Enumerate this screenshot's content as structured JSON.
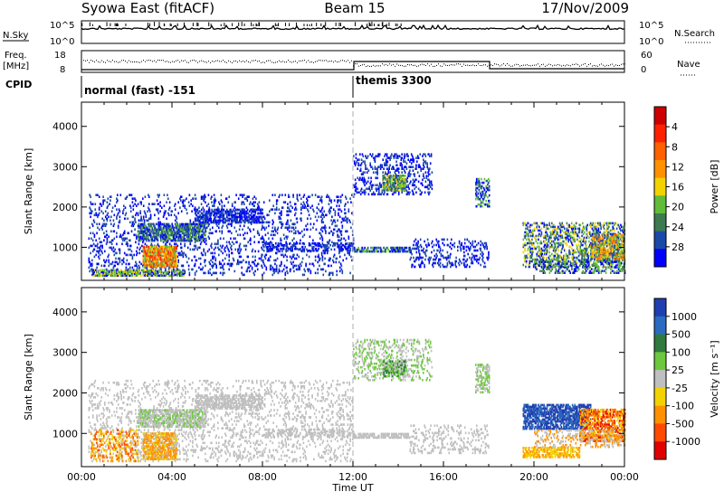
{
  "header": {
    "left": "Syowa East (fitACF)",
    "center": "Beam 15",
    "right": "17/Nov/2009"
  },
  "strips": {
    "nsky_label": "N.Sky",
    "nsearch_label": "N.Search",
    "nsky_ticks": [
      "10^5",
      "10^0"
    ],
    "freq_label_1": "Freq.",
    "freq_label_2": "[MHz]",
    "freq_ticks": [
      "18",
      "8"
    ],
    "nave_label": "Nave",
    "nave_ticks": [
      "60",
      "0"
    ],
    "cpid_label": "CPID",
    "cpid_modes": [
      {
        "label": "normal (fast) -151",
        "start_hour": 0
      },
      {
        "label": "themis 3300",
        "start_hour": 12
      }
    ]
  },
  "chart_data": [
    {
      "type": "heatmap",
      "name": "power",
      "xlabel": "",
      "ylabel": "Slant Range [km]",
      "xlim": [
        0,
        24
      ],
      "ylim": [
        180,
        4600
      ],
      "yticks": [
        "1000",
        "2000",
        "3000",
        "4000"
      ],
      "colorbar_label": "Power [dB]",
      "colorbar_ticks": [
        "4",
        "8",
        "12",
        "16",
        "20",
        "24",
        "28"
      ],
      "colors": [
        "#0000ff",
        "#1a4aa8",
        "#3d7a4f",
        "#5fbd3a",
        "#f2d200",
        "#ff9000",
        "#ff6000",
        "#ff2000",
        "#cc0000"
      ],
      "regions": [
        {
          "t": [
            0.3,
            12
          ],
          "r": [
            300,
            2300
          ],
          "density": 0.12,
          "colors": [
            0,
            1
          ]
        },
        {
          "t": [
            2.5,
            5.5
          ],
          "r": [
            1150,
            1600
          ],
          "density": 0.55,
          "colors": [
            1,
            2,
            3,
            0
          ]
        },
        {
          "t": [
            2.7,
            4.2
          ],
          "r": [
            500,
            1000
          ],
          "density": 0.7,
          "colors": [
            4,
            5,
            6,
            7,
            3
          ]
        },
        {
          "t": [
            0.5,
            4.5
          ],
          "r": [
            280,
            420
          ],
          "density": 0.5,
          "colors": [
            2,
            3,
            4,
            0
          ]
        },
        {
          "t": [
            5,
            8
          ],
          "r": [
            1600,
            1950
          ],
          "density": 0.45,
          "colors": [
            0,
            1
          ]
        },
        {
          "t": [
            8,
            12
          ],
          "r": [
            900,
            1100
          ],
          "density": 0.3,
          "colors": [
            0,
            1
          ]
        },
        {
          "t": [
            12,
            15.5
          ],
          "r": [
            2300,
            3300
          ],
          "density": 0.2,
          "colors": [
            0,
            1
          ]
        },
        {
          "t": [
            13.3,
            14.3
          ],
          "r": [
            2400,
            2800
          ],
          "density": 0.6,
          "colors": [
            1,
            3,
            4,
            2
          ]
        },
        {
          "t": [
            12,
            14.5
          ],
          "r": [
            880,
            1000
          ],
          "density": 0.55,
          "colors": [
            0,
            1,
            3
          ]
        },
        {
          "t": [
            14.5,
            18
          ],
          "r": [
            500,
            1200
          ],
          "density": 0.15,
          "colors": [
            0,
            1
          ]
        },
        {
          "t": [
            17.4,
            18
          ],
          "r": [
            2000,
            2700
          ],
          "density": 0.4,
          "colors": [
            0,
            1,
            3
          ]
        },
        {
          "t": [
            19.5,
            24
          ],
          "r": [
            500,
            1600
          ],
          "density": 0.3,
          "colors": [
            0,
            1,
            2,
            3,
            4
          ]
        },
        {
          "t": [
            20,
            24
          ],
          "r": [
            350,
            700
          ],
          "density": 0.3,
          "colors": [
            0,
            2,
            3
          ]
        },
        {
          "t": [
            22.5,
            24
          ],
          "r": [
            700,
            1300
          ],
          "density": 0.55,
          "colors": [
            3,
            4,
            5,
            6,
            1
          ]
        }
      ]
    },
    {
      "type": "heatmap",
      "name": "velocity",
      "xlabel": "Time UT",
      "ylabel": "Slant Range [km]",
      "xlim": [
        0,
        24
      ],
      "ylim": [
        180,
        4600
      ],
      "xticks": [
        "00:00",
        "04:00",
        "08:00",
        "12:00",
        "16:00",
        "20:00",
        "00:00"
      ],
      "yticks": [
        "1000",
        "2000",
        "3000",
        "4000"
      ],
      "colorbar_label": "Velocity [m s⁻¹]",
      "colorbar_ticks": [
        "1000",
        "500",
        "100",
        "25",
        "-25",
        "-100",
        "-500",
        "-1000"
      ],
      "colors": [
        "#1f3fb0",
        "#2a6bbf",
        "#2f7a3d",
        "#6cc83e",
        "#bfbfbf",
        "#f2d200",
        "#ff9000",
        "#ff4a00",
        "#e00000"
      ],
      "regions": [
        {
          "t": [
            0.3,
            12
          ],
          "r": [
            300,
            2300
          ],
          "density": 0.12,
          "colors": [
            4
          ]
        },
        {
          "t": [
            2.5,
            5.5
          ],
          "r": [
            1150,
            1600
          ],
          "density": 0.55,
          "colors": [
            4,
            4,
            3
          ]
        },
        {
          "t": [
            2.7,
            4.2
          ],
          "r": [
            350,
            1000
          ],
          "density": 0.65,
          "colors": [
            5,
            6,
            6,
            4
          ]
        },
        {
          "t": [
            0.4,
            2.5
          ],
          "r": [
            300,
            1100
          ],
          "density": 0.25,
          "colors": [
            6,
            7,
            5
          ]
        },
        {
          "t": [
            5,
            8
          ],
          "r": [
            1600,
            1950
          ],
          "density": 0.45,
          "colors": [
            4
          ]
        },
        {
          "t": [
            8,
            12
          ],
          "r": [
            900,
            1100
          ],
          "density": 0.3,
          "colors": [
            4
          ]
        },
        {
          "t": [
            12,
            15.5
          ],
          "r": [
            2300,
            3300
          ],
          "density": 0.2,
          "colors": [
            4,
            3
          ]
        },
        {
          "t": [
            13.3,
            14.3
          ],
          "r": [
            2400,
            2800
          ],
          "density": 0.6,
          "colors": [
            3,
            4,
            2
          ]
        },
        {
          "t": [
            12,
            14.5
          ],
          "r": [
            880,
            1000
          ],
          "density": 0.55,
          "colors": [
            4
          ]
        },
        {
          "t": [
            14.5,
            18
          ],
          "r": [
            500,
            1200
          ],
          "density": 0.15,
          "colors": [
            4
          ]
        },
        {
          "t": [
            17.4,
            18
          ],
          "r": [
            2000,
            2700
          ],
          "density": 0.4,
          "colors": [
            4,
            3
          ]
        },
        {
          "t": [
            19.5,
            22.5
          ],
          "r": [
            1100,
            1700
          ],
          "density": 0.55,
          "colors": [
            0,
            1,
            0
          ]
        },
        {
          "t": [
            22,
            24
          ],
          "r": [
            800,
            1600
          ],
          "density": 0.55,
          "colors": [
            6,
            7,
            8,
            5
          ]
        },
        {
          "t": [
            19.5,
            22
          ],
          "r": [
            400,
            650
          ],
          "density": 0.5,
          "colors": [
            5,
            6
          ]
        },
        {
          "t": [
            20,
            24
          ],
          "r": [
            650,
            1100
          ],
          "density": 0.2,
          "colors": [
            4,
            6
          ]
        }
      ]
    }
  ]
}
